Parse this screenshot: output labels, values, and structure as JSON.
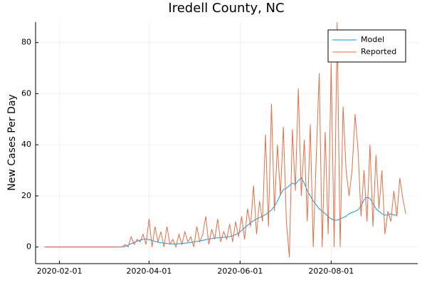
{
  "chart_data": {
    "type": "line",
    "title": "Iredell County, NC",
    "y_label": "New Cases Per Day",
    "x": [
      "2020-01-22",
      "2020-01-24",
      "2020-01-26",
      "2020-01-28",
      "2020-01-30",
      "2020-02-01",
      "2020-02-03",
      "2020-02-05",
      "2020-02-07",
      "2020-02-09",
      "2020-02-11",
      "2020-02-13",
      "2020-02-15",
      "2020-02-17",
      "2020-02-19",
      "2020-02-21",
      "2020-02-23",
      "2020-02-25",
      "2020-02-27",
      "2020-02-29",
      "2020-03-02",
      "2020-03-04",
      "2020-03-06",
      "2020-03-08",
      "2020-03-10",
      "2020-03-12",
      "2020-03-14",
      "2020-03-16",
      "2020-03-18",
      "2020-03-20",
      "2020-03-22",
      "2020-03-24",
      "2020-03-26",
      "2020-03-28",
      "2020-03-30",
      "2020-04-01",
      "2020-04-03",
      "2020-04-05",
      "2020-04-07",
      "2020-04-09",
      "2020-04-11",
      "2020-04-13",
      "2020-04-15",
      "2020-04-17",
      "2020-04-19",
      "2020-04-21",
      "2020-04-23",
      "2020-04-25",
      "2020-04-27",
      "2020-04-29",
      "2020-05-01",
      "2020-05-03",
      "2020-05-05",
      "2020-05-07",
      "2020-05-09",
      "2020-05-11",
      "2020-05-13",
      "2020-05-15",
      "2020-05-17",
      "2020-05-19",
      "2020-05-21",
      "2020-05-23",
      "2020-05-25",
      "2020-05-27",
      "2020-05-29",
      "2020-05-31",
      "2020-06-02",
      "2020-06-04",
      "2020-06-06",
      "2020-06-08",
      "2020-06-10",
      "2020-06-12",
      "2020-06-14",
      "2020-06-16",
      "2020-06-18",
      "2020-06-20",
      "2020-06-22",
      "2020-06-24",
      "2020-06-26",
      "2020-06-28",
      "2020-06-30",
      "2020-07-02",
      "2020-07-04",
      "2020-07-06",
      "2020-07-08",
      "2020-07-10",
      "2020-07-12",
      "2020-07-14",
      "2020-07-16",
      "2020-07-18",
      "2020-07-20",
      "2020-07-22",
      "2020-07-24",
      "2020-07-26",
      "2020-07-28",
      "2020-07-30",
      "2020-08-01",
      "2020-08-03",
      "2020-08-05",
      "2020-08-07",
      "2020-08-09",
      "2020-08-11",
      "2020-08-13",
      "2020-08-15",
      "2020-08-17",
      "2020-08-19",
      "2020-08-21",
      "2020-08-23",
      "2020-08-25",
      "2020-08-27",
      "2020-08-29",
      "2020-08-31",
      "2020-09-02",
      "2020-09-04",
      "2020-09-06",
      "2020-09-08",
      "2020-09-10",
      "2020-09-12",
      "2020-09-14",
      "2020-09-16",
      "2020-09-18",
      "2020-09-20"
    ],
    "series": [
      {
        "name": "Model",
        "color": "#009af9",
        "values": [
          0,
          0,
          0,
          0,
          0,
          0,
          0,
          0,
          0,
          0,
          0,
          0,
          0,
          0,
          0,
          0,
          0,
          0,
          0,
          0,
          0,
          0,
          0,
          0,
          0,
          0,
          0,
          0.3,
          0.8,
          1.3,
          1.8,
          2.3,
          2.7,
          3,
          3.1,
          2.9,
          2.6,
          2.2,
          1.9,
          1.7,
          1.5,
          1.4,
          1.3,
          1.2,
          1.2,
          1.3,
          1.4,
          1.5,
          1.6,
          1.8,
          2,
          2.2,
          2.4,
          2.6,
          2.9,
          3.1,
          3.3,
          3.5,
          3.6,
          3.7,
          3.8,
          3.9,
          4.1,
          4.4,
          4.9,
          5.5,
          6.5,
          7.5,
          8.5,
          9.5,
          10.3,
          11,
          11.5,
          12,
          12.7,
          13.5,
          14.5,
          16,
          18,
          20.5,
          22.5,
          23,
          24,
          25,
          24.5,
          26,
          27,
          25,
          22,
          20,
          18,
          16.5,
          15,
          14,
          13,
          12,
          11,
          10.5,
          10.5,
          11,
          11.5,
          12,
          13,
          13.5,
          14,
          14.5,
          16,
          18.5,
          19.5,
          19,
          17,
          15,
          14,
          13,
          12.5,
          12.5,
          13,
          12.5,
          12.5,
          null,
          null,
          null
        ]
      },
      {
        "name": "Reported",
        "color": "#e26f46",
        "values": [
          0,
          0,
          0,
          0,
          0,
          0,
          0,
          0,
          0,
          0,
          0,
          0,
          0,
          0,
          0,
          0,
          0,
          0,
          0,
          0,
          0,
          0,
          0,
          0,
          0,
          0,
          0,
          1,
          0,
          4,
          1,
          3,
          2,
          5,
          1,
          11,
          0,
          8,
          2,
          6,
          0,
          8,
          1,
          3,
          0,
          5,
          1,
          6,
          2,
          4,
          0,
          8,
          2,
          5,
          12,
          1,
          7,
          3,
          11,
          2,
          6,
          3,
          9,
          2,
          10,
          4,
          12,
          3,
          15,
          8,
          24,
          5,
          18,
          10,
          44,
          8,
          56,
          14,
          40,
          20,
          47,
          10,
          -4,
          46,
          22,
          62,
          20,
          42,
          10,
          48,
          0,
          35,
          68,
          0,
          45,
          5,
          72,
          0,
          88,
          0,
          55,
          30,
          20,
          30,
          52,
          38,
          12,
          30,
          10,
          40,
          8,
          36,
          15,
          30,
          5,
          14,
          10,
          22,
          12,
          27,
          19,
          13
        ]
      }
    ],
    "xlim": [
      "2020-01-16",
      "2020-09-28"
    ],
    "xticks": [
      "2020-02-01",
      "2020-04-01",
      "2020-06-01",
      "2020-08-01"
    ],
    "ylim": [
      -6.5,
      88
    ],
    "yticks": [
      0,
      20,
      40,
      60,
      80
    ],
    "grid": true,
    "legend": "top-right"
  }
}
